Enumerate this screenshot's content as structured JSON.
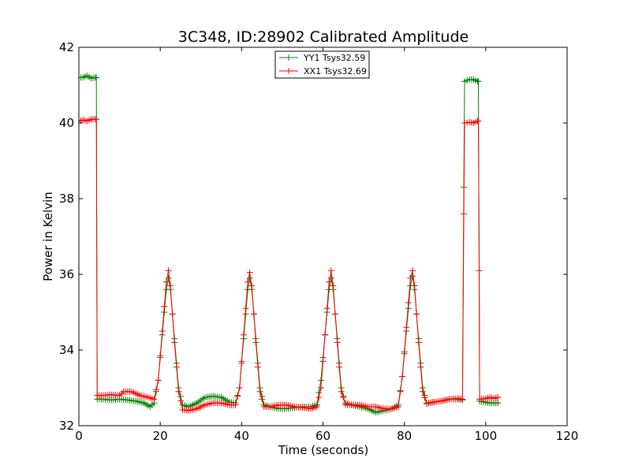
{
  "chart_data": {
    "type": "line",
    "title": "3C348, ID:28902 Calibrated Amplitude",
    "xlabel": "Time (seconds)",
    "ylabel": "Power in Kelvin",
    "xlim": [
      0,
      120
    ],
    "ylim": [
      32,
      42
    ],
    "xticks": [
      0,
      20,
      40,
      60,
      80,
      100,
      120
    ],
    "yticks": [
      32,
      34,
      36,
      38,
      40,
      42
    ],
    "grid": false,
    "legend_position": "top-center",
    "marker": "plus",
    "series": [
      {
        "name": "YY1 Tsys32.59",
        "color": "#008000",
        "points": [
          [
            0,
            41.2
          ],
          [
            1,
            41.2
          ],
          [
            2,
            41.25
          ],
          [
            3,
            41.18
          ],
          [
            4,
            41.2
          ],
          [
            4.3,
            41.2
          ],
          [
            4.5,
            32.7
          ],
          [
            6,
            32.7
          ],
          [
            8,
            32.68
          ],
          [
            10,
            32.7
          ],
          [
            12,
            32.68
          ],
          [
            14,
            32.65
          ],
          [
            16,
            32.6
          ],
          [
            17.5,
            32.5
          ],
          [
            18.5,
            32.6
          ],
          [
            19.5,
            33.2
          ],
          [
            20.5,
            34.4
          ],
          [
            21.5,
            35.6
          ],
          [
            22,
            35.9
          ],
          [
            22.5,
            35.6
          ],
          [
            23.5,
            34.3
          ],
          [
            24.5,
            33.0
          ],
          [
            25.5,
            32.55
          ],
          [
            27,
            32.5
          ],
          [
            29,
            32.6
          ],
          [
            31,
            32.75
          ],
          [
            33,
            32.78
          ],
          [
            35,
            32.75
          ],
          [
            37,
            32.62
          ],
          [
            38.5,
            32.6
          ],
          [
            39.5,
            33.0
          ],
          [
            40.5,
            34.3
          ],
          [
            41.5,
            35.6
          ],
          [
            42,
            35.9
          ],
          [
            42.5,
            35.6
          ],
          [
            43.5,
            34.3
          ],
          [
            44.5,
            33.0
          ],
          [
            45.5,
            32.55
          ],
          [
            47,
            32.5
          ],
          [
            49,
            32.45
          ],
          [
            51,
            32.45
          ],
          [
            53,
            32.48
          ],
          [
            55,
            32.5
          ],
          [
            57,
            32.5
          ],
          [
            58.5,
            32.55
          ],
          [
            59.5,
            33.2
          ],
          [
            60.5,
            34.4
          ],
          [
            61.5,
            35.6
          ],
          [
            62,
            35.9
          ],
          [
            62.5,
            35.6
          ],
          [
            63.5,
            34.3
          ],
          [
            64.5,
            33.0
          ],
          [
            65.5,
            32.55
          ],
          [
            67,
            32.55
          ],
          [
            69,
            32.5
          ],
          [
            71,
            32.45
          ],
          [
            73,
            32.35
          ],
          [
            75,
            32.4
          ],
          [
            77,
            32.45
          ],
          [
            78.5,
            32.55
          ],
          [
            79.5,
            33.3
          ],
          [
            80.5,
            34.5
          ],
          [
            81.5,
            35.7
          ],
          [
            82,
            35.95
          ],
          [
            82.5,
            35.6
          ],
          [
            83.5,
            34.3
          ],
          [
            84.5,
            33.0
          ],
          [
            85.5,
            32.6
          ],
          [
            87,
            32.62
          ],
          [
            89,
            32.65
          ],
          [
            91,
            32.7
          ],
          [
            93,
            32.7
          ],
          [
            94.3,
            32.68
          ],
          [
            94.6,
            38.3
          ],
          [
            94.8,
            41.1
          ],
          [
            96,
            41.15
          ],
          [
            97,
            41.15
          ],
          [
            98,
            41.1
          ],
          [
            98.2,
            41.1
          ],
          [
            98.5,
            32.65
          ],
          [
            100,
            32.62
          ],
          [
            101,
            32.6
          ],
          [
            102,
            32.6
          ],
          [
            103,
            32.6
          ]
        ]
      },
      {
        "name": "XX1 Tsys32.69",
        "color": "#ff0000",
        "points": [
          [
            0,
            40.05
          ],
          [
            1,
            40.08
          ],
          [
            2,
            40.05
          ],
          [
            3,
            40.1
          ],
          [
            4,
            40.1
          ],
          [
            4.3,
            40.1
          ],
          [
            4.5,
            32.8
          ],
          [
            6,
            32.8
          ],
          [
            8,
            32.82
          ],
          [
            10,
            32.8
          ],
          [
            11,
            32.9
          ],
          [
            13,
            32.9
          ],
          [
            15,
            32.8
          ],
          [
            17,
            32.75
          ],
          [
            18.5,
            32.7
          ],
          [
            19.5,
            33.2
          ],
          [
            20.5,
            34.5
          ],
          [
            21.5,
            35.8
          ],
          [
            22,
            36.1
          ],
          [
            22.5,
            35.7
          ],
          [
            23.5,
            34.2
          ],
          [
            24.5,
            32.9
          ],
          [
            25.5,
            32.42
          ],
          [
            27,
            32.4
          ],
          [
            29,
            32.45
          ],
          [
            31,
            32.55
          ],
          [
            33,
            32.6
          ],
          [
            35,
            32.6
          ],
          [
            37,
            32.55
          ],
          [
            38.5,
            32.55
          ],
          [
            39.5,
            33.0
          ],
          [
            40.5,
            34.4
          ],
          [
            41.5,
            35.8
          ],
          [
            42,
            36.05
          ],
          [
            42.5,
            35.7
          ],
          [
            43.5,
            34.2
          ],
          [
            44.5,
            32.9
          ],
          [
            45.5,
            32.5
          ],
          [
            47,
            32.5
          ],
          [
            49,
            32.55
          ],
          [
            51,
            32.55
          ],
          [
            53,
            32.5
          ],
          [
            55,
            32.48
          ],
          [
            57,
            32.45
          ],
          [
            58.5,
            32.5
          ],
          [
            59.5,
            33.0
          ],
          [
            60.5,
            34.4
          ],
          [
            61.5,
            35.8
          ],
          [
            62,
            36.1
          ],
          [
            62.5,
            35.7
          ],
          [
            63.5,
            34.2
          ],
          [
            64.5,
            32.9
          ],
          [
            65.5,
            32.6
          ],
          [
            67,
            32.55
          ],
          [
            69,
            32.55
          ],
          [
            71,
            32.5
          ],
          [
            73,
            32.5
          ],
          [
            75,
            32.45
          ],
          [
            77,
            32.45
          ],
          [
            78.5,
            32.5
          ],
          [
            79.5,
            33.3
          ],
          [
            80.5,
            34.6
          ],
          [
            81.5,
            35.9
          ],
          [
            82,
            36.1
          ],
          [
            82.5,
            35.7
          ],
          [
            83.5,
            34.2
          ],
          [
            84.5,
            32.9
          ],
          [
            85.5,
            32.58
          ],
          [
            87,
            32.62
          ],
          [
            89,
            32.65
          ],
          [
            91,
            32.7
          ],
          [
            93,
            32.72
          ],
          [
            94.3,
            32.7
          ],
          [
            94.6,
            37.6
          ],
          [
            94.8,
            40.0
          ],
          [
            96,
            40.02
          ],
          [
            97,
            40.0
          ],
          [
            98,
            40.05
          ],
          [
            98.2,
            40.05
          ],
          [
            98.4,
            36.1
          ],
          [
            98.5,
            32.7
          ],
          [
            100,
            32.72
          ],
          [
            101,
            32.75
          ],
          [
            102,
            32.72
          ],
          [
            103,
            32.75
          ]
        ]
      }
    ]
  }
}
